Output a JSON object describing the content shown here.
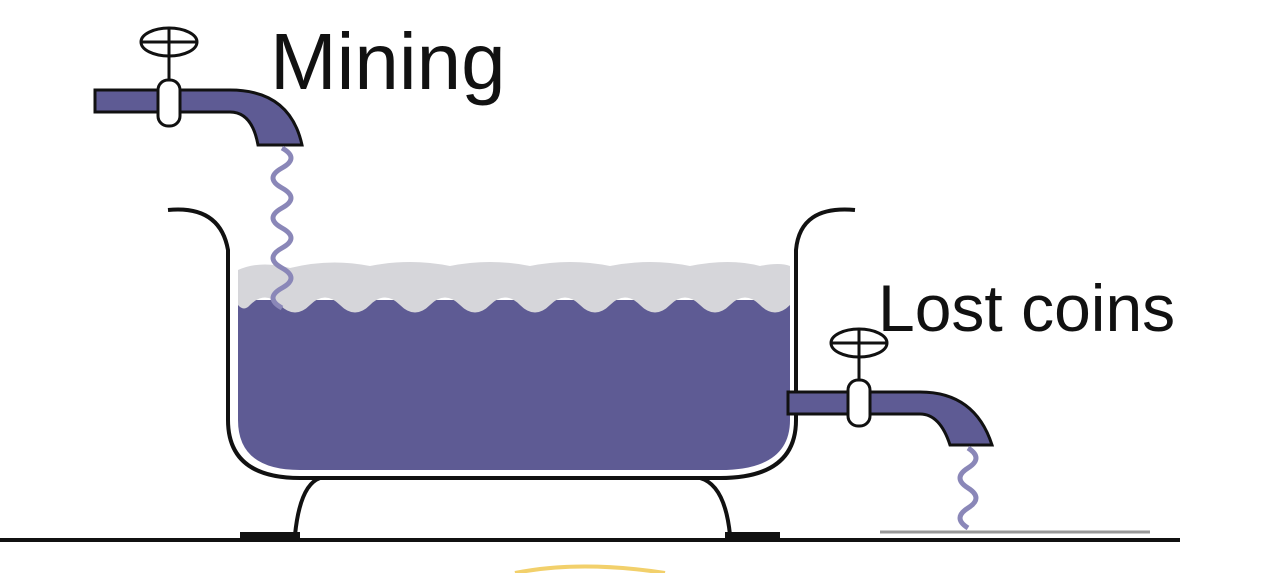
{
  "labels": {
    "inflow": "Mining",
    "outflow": "Lost coins"
  },
  "colors": {
    "water": "#5e5b94",
    "water_foam": "#d6d6da",
    "outline": "#111111",
    "pipe_stream": "#8a87b8",
    "background": "#ffffff"
  },
  "icons": [
    "inflow-tap-icon",
    "outflow-tap-icon",
    "bathtub-icon",
    "water-stream-icon"
  ]
}
